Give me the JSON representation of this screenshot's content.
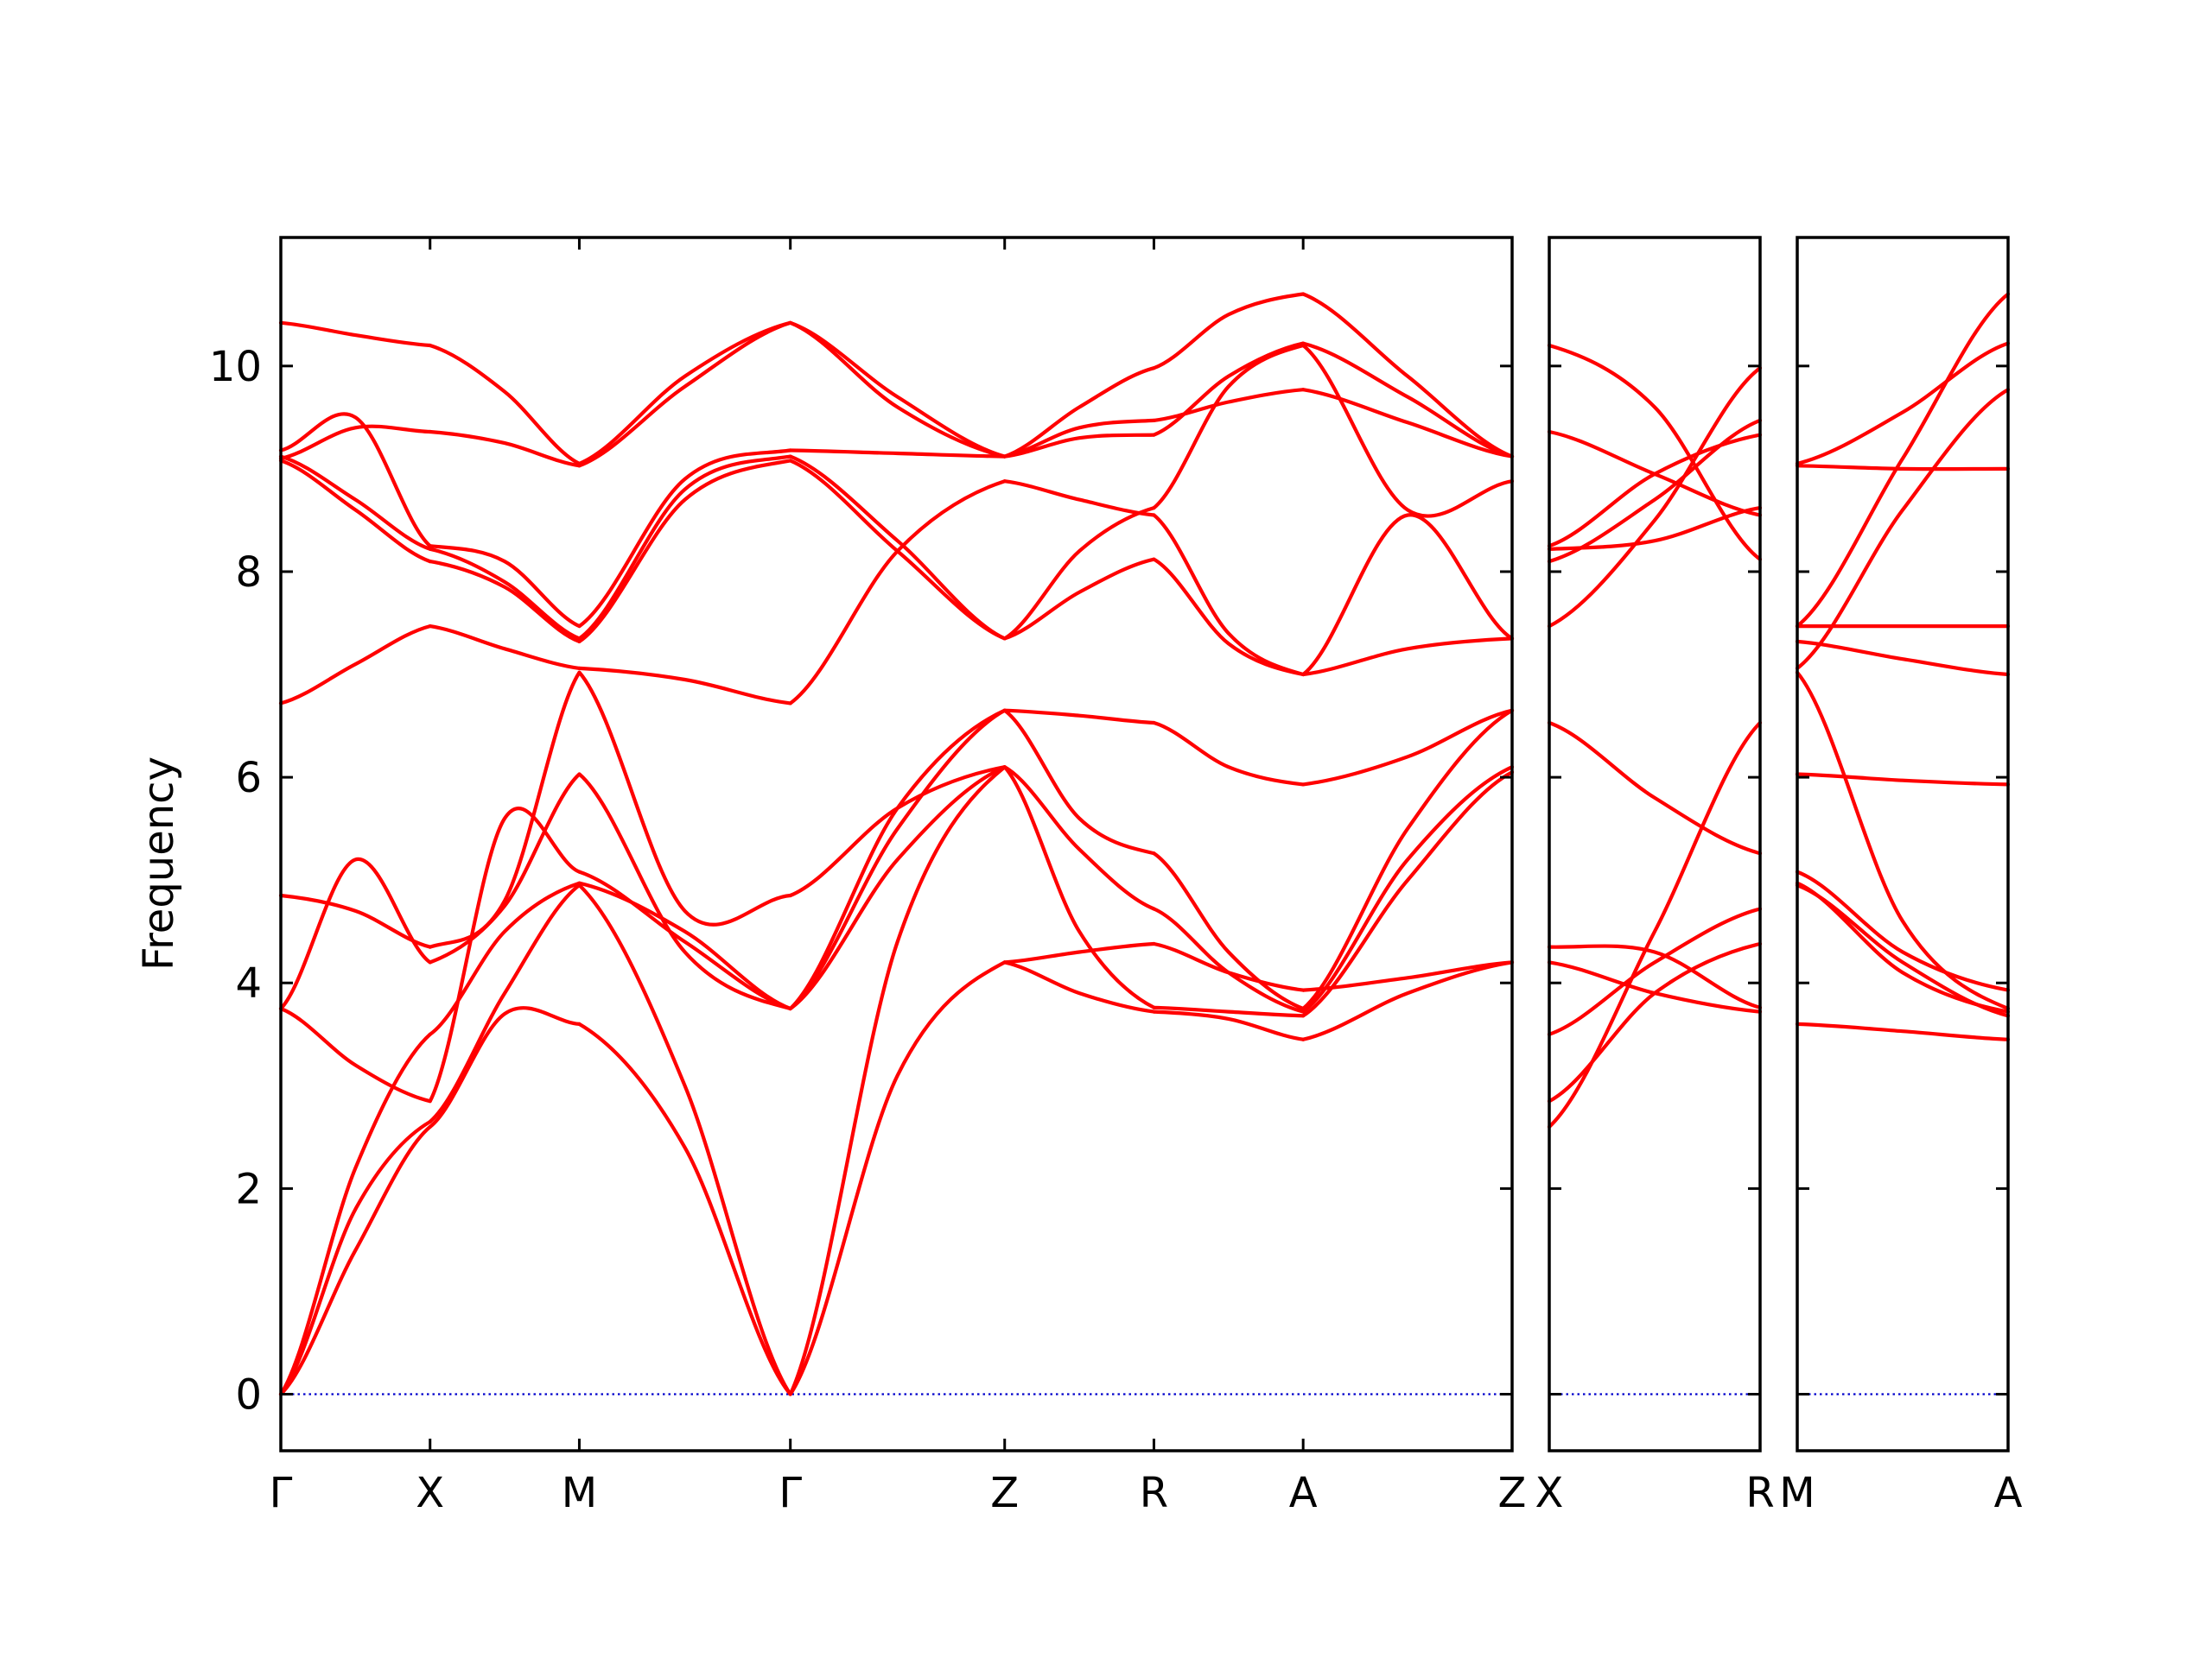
{
  "chart_data": {
    "type": "line",
    "ylabel": "Frequency",
    "ylim": [
      -0.55,
      11.25
    ],
    "yticks": [
      0,
      2,
      4,
      6,
      8,
      10
    ],
    "line_color": "#ff0000",
    "zero_line_color": "#0000cc",
    "grid": false,
    "panels": [
      {
        "x_range": [
          0,
          8.25
        ],
        "x_labels": [
          {
            "x": 0,
            "label": "Γ"
          },
          {
            "x": 1,
            "label": "X"
          },
          {
            "x": 2,
            "label": "M"
          },
          {
            "x": 3.414,
            "label": "Γ"
          },
          {
            "x": 4.85,
            "label": "Z"
          },
          {
            "x": 5.85,
            "label": "R"
          },
          {
            "x": 6.85,
            "label": "A"
          },
          {
            "x": 8.25,
            "label": "Z"
          }
        ],
        "segments": [
          {
            "x0": 0,
            "x1": 1,
            "bands": [
              [
                0,
                1.4,
                2.6
              ],
              [
                0,
                1.8,
                2.65
              ],
              [
                0,
                2.2,
                3.5
              ],
              [
                3.75,
                3.2,
                2.85
              ],
              [
                3.75,
                5.2,
                4.2
              ],
              [
                4.85,
                4.7,
                4.35
              ],
              [
                6.72,
                7.1,
                7.47
              ],
              [
                9.08,
                8.6,
                8.1
              ],
              [
                9.12,
                8.7,
                8.22
              ],
              [
                9.18,
                9.5,
                8.25
              ],
              [
                9.1,
                9.4,
                9.36
              ],
              [
                10.42,
                10.3,
                10.2
              ]
            ]
          },
          {
            "x0": 1,
            "x1": 2,
            "bands": [
              [
                2.6,
                3.7,
                3.6
              ],
              [
                2.65,
                3.9,
                4.95
              ],
              [
                3.5,
                4.5,
                4.97
              ],
              [
                2.85,
                5.6,
                5.08
              ],
              [
                4.2,
                4.75,
                6.03
              ],
              [
                4.35,
                4.8,
                7.02
              ],
              [
                7.47,
                7.25,
                7.06
              ],
              [
                8.1,
                7.85,
                7.32
              ],
              [
                8.22,
                7.9,
                7.35
              ],
              [
                8.25,
                8.1,
                7.47
              ],
              [
                9.36,
                9.25,
                9.03
              ],
              [
                10.2,
                9.75,
                9.05
              ]
            ]
          },
          {
            "x0": 2,
            "x1": 3.414,
            "bands": [
              [
                3.6,
                2.4,
                0
              ],
              [
                4.95,
                3.0,
                0
              ],
              [
                4.97,
                4.5,
                3.75
              ],
              [
                5.08,
                4.4,
                3.75
              ],
              [
                6.03,
                4.3,
                3.75
              ],
              [
                7.02,
                4.7,
                4.85
              ],
              [
                7.06,
                6.95,
                6.72
              ],
              [
                7.32,
                8.7,
                9.08
              ],
              [
                7.35,
                8.8,
                9.12
              ],
              [
                7.47,
                8.9,
                9.18
              ],
              [
                9.03,
                9.8,
                10.42
              ],
              [
                9.05,
                9.9,
                10.42
              ]
            ]
          },
          {
            "x0": 3.414,
            "x1": 4.85,
            "bands": [
              [
                0,
                3.1,
                4.2
              ],
              [
                0,
                4.4,
                6.1
              ],
              [
                3.75,
                5.2,
                6.1
              ],
              [
                3.75,
                5.5,
                6.65
              ],
              [
                3.75,
                5.7,
                6.65
              ],
              [
                4.85,
                5.7,
                6.1
              ],
              [
                6.72,
                8.2,
                8.88
              ],
              [
                9.08,
                8.2,
                7.35
              ],
              [
                9.12,
                8.3,
                7.35
              ],
              [
                9.18,
                9.15,
                9.12
              ],
              [
                10.42,
                9.6,
                9.12
              ],
              [
                10.42,
                9.7,
                9.12
              ]
            ]
          },
          {
            "x0": 4.85,
            "x1": 5.85,
            "bands": [
              [
                4.2,
                4.3,
                4.38
              ],
              [
                4.2,
                3.9,
                3.72
              ],
              [
                6.1,
                4.5,
                3.76
              ],
              [
                6.1,
                5.3,
                4.72
              ],
              [
                6.65,
                5.6,
                5.26
              ],
              [
                6.65,
                6.6,
                6.53
              ],
              [
                8.88,
                8.7,
                8.55
              ],
              [
                7.35,
                7.8,
                8.12
              ],
              [
                7.35,
                8.2,
                8.62
              ],
              [
                9.12,
                9.3,
                9.33
              ],
              [
                9.12,
                9.4,
                9.47
              ],
              [
                9.12,
                9.6,
                9.98
              ]
            ]
          },
          {
            "x0": 5.85,
            "x1": 6.85,
            "bands": [
              [
                4.38,
                4.1,
                3.93
              ],
              [
                3.72,
                3.65,
                3.45
              ],
              [
                3.76,
                3.72,
                3.68
              ],
              [
                4.72,
                4.1,
                3.72
              ],
              [
                5.26,
                4.3,
                3.75
              ],
              [
                6.53,
                6.1,
                5.93
              ],
              [
                8.55,
                7.4,
                7.0
              ],
              [
                8.12,
                7.3,
                7.0
              ],
              [
                8.62,
                9.8,
                10.2
              ],
              [
                9.33,
                9.9,
                10.22
              ],
              [
                9.47,
                9.65,
                9.77
              ],
              [
                9.98,
                10.5,
                10.7
              ]
            ]
          },
          {
            "x0": 6.85,
            "x1": 8.25,
            "bands": [
              [
                3.93,
                4.05,
                4.2
              ],
              [
                3.45,
                3.9,
                4.2
              ],
              [
                3.68,
                5.0,
                6.05
              ],
              [
                3.72,
                5.2,
                6.1
              ],
              [
                3.75,
                5.5,
                6.65
              ],
              [
                5.93,
                6.2,
                6.65
              ],
              [
                7.0,
                7.25,
                7.35
              ],
              [
                7.0,
                8.55,
                7.35
              ],
              [
                10.2,
                8.6,
                8.88
              ],
              [
                10.22,
                9.7,
                9.12
              ],
              [
                9.77,
                9.45,
                9.12
              ],
              [
                10.7,
                9.9,
                9.12
              ]
            ]
          }
        ]
      },
      {
        "x_range": [
          0,
          1
        ],
        "x_labels": [
          {
            "x": 0,
            "label": "X"
          },
          {
            "x": 1,
            "label": "R"
          }
        ],
        "segments": [
          {
            "x0": 0,
            "x1": 1,
            "bands": [
              [
                2.6,
                4.5,
                6.53
              ],
              [
                2.85,
                3.9,
                4.38
              ],
              [
                3.5,
                4.2,
                4.72
              ],
              [
                4.2,
                3.9,
                3.72
              ],
              [
                4.35,
                4.3,
                3.76
              ],
              [
                6.53,
                5.8,
                5.26
              ],
              [
                7.47,
                8.5,
                9.98
              ],
              [
                8.1,
                8.7,
                9.47
              ],
              [
                8.22,
                8.3,
                8.62
              ],
              [
                8.25,
                8.95,
                9.33
              ],
              [
                9.36,
                8.95,
                8.55
              ],
              [
                10.2,
                9.6,
                8.12
              ]
            ]
          }
        ]
      },
      {
        "x_range": [
          0,
          1
        ],
        "x_labels": [
          {
            "x": 0,
            "label": "M"
          },
          {
            "x": 1,
            "label": "A"
          }
        ],
        "segments": [
          {
            "x0": 0,
            "x1": 1,
            "bands": [
              [
                3.6,
                3.53,
                3.45
              ],
              [
                4.95,
                4.2,
                3.68
              ],
              [
                4.97,
                4.1,
                3.72
              ],
              [
                5.08,
                4.3,
                3.93
              ],
              [
                6.03,
                5.97,
                5.93
              ],
              [
                7.02,
                4.6,
                3.75
              ],
              [
                7.06,
                8.6,
                9.77
              ],
              [
                7.32,
                7.15,
                7.0
              ],
              [
                7.47,
                9.1,
                10.7
              ],
              [
                9.05,
                9.55,
                10.22
              ],
              [
                9.03,
                9.0,
                9.0
              ],
              [
                7.47,
                7.47,
                7.47
              ]
            ]
          }
        ]
      }
    ]
  }
}
